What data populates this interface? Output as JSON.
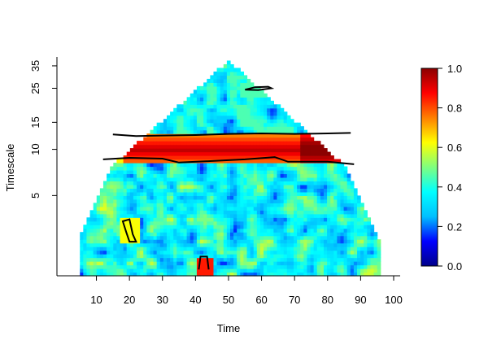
{
  "chart_data": {
    "type": "heatmap",
    "title": "",
    "xlabel": "Time",
    "ylabel": "Timescale",
    "x_ticks": [
      10,
      20,
      30,
      40,
      50,
      60,
      70,
      80,
      90,
      100
    ],
    "y_ticks": [
      5,
      10,
      15,
      25,
      35
    ],
    "y_scale": "log",
    "xlim": [
      1,
      100
    ],
    "ylim": [
      1.5,
      40
    ],
    "colorbar": {
      "ticks": [
        "0.0",
        "0.2",
        "0.4",
        "0.6",
        "0.8",
        "1.0"
      ],
      "range": [
        0,
        1
      ],
      "colors": [
        "#00008B",
        "#0000FF",
        "#00BFFF",
        "#00FFFF",
        "#7FFF7F",
        "#FFFF00",
        "#FF7F00",
        "#FF0000",
        "#8B0000"
      ]
    },
    "cone_of_influence": "triangular, apex near time 50 at timescale ~38",
    "features": [
      {
        "description": "high-power band",
        "time": [
          12,
          90
        ],
        "timescale": [
          8.5,
          12
        ],
        "value": 0.85
      },
      {
        "description": "small island",
        "time": [
          55,
          63
        ],
        "timescale": [
          24,
          26
        ],
        "value": 0.45
      },
      {
        "description": "small island",
        "time": [
          18,
          22
        ],
        "timescale": [
          2.5,
          3.5
        ],
        "value": 0.6
      },
      {
        "description": "small island",
        "time": [
          41,
          44
        ],
        "timescale": [
          1.6,
          2
        ],
        "value": 0.9
      }
    ]
  }
}
